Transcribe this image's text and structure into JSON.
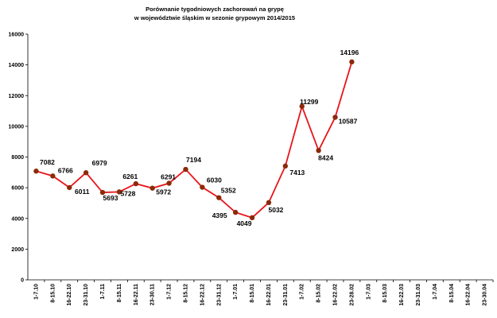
{
  "chart_data": {
    "type": "line",
    "title": [
      "Porównanie tygodniowych zachorowań na grypę",
      "w województwie śląskim w sezonie grypowym 2014/2015"
    ],
    "categories": [
      "1-7.10",
      "8-15.10",
      "16-22.10",
      "23-31.10",
      "1-7.11",
      "8-15.11",
      "16-22.11",
      "23-30.11",
      "1-7.12",
      "8-15.12",
      "16-22.12",
      "23-31.12",
      "1-7.01",
      "8-15.01",
      "16-22.01",
      "23-31.01",
      "1-7.02",
      "8-15.02",
      "16-22.02",
      "23-28.02",
      "1-7.03",
      "8-15.03",
      "16-22.03",
      "23-31.03",
      "1-7.04",
      "8-15.04",
      "16-22.04",
      "23-30.04"
    ],
    "values": [
      7082,
      6766,
      6011,
      6979,
      5693,
      5728,
      6261,
      5972,
      6291,
      7194,
      6030,
      5352,
      4395,
      4049,
      5032,
      7413,
      11299,
      8424,
      10587,
      14196,
      null,
      null,
      null,
      null,
      null,
      null,
      null,
      null
    ],
    "color": "#e8141a",
    "marker_color": "#8b2a0a",
    "ylim": [
      0,
      16000
    ],
    "yticks": [
      0,
      2000,
      4000,
      6000,
      8000,
      10000,
      12000,
      14000,
      16000
    ],
    "grid": false
  }
}
